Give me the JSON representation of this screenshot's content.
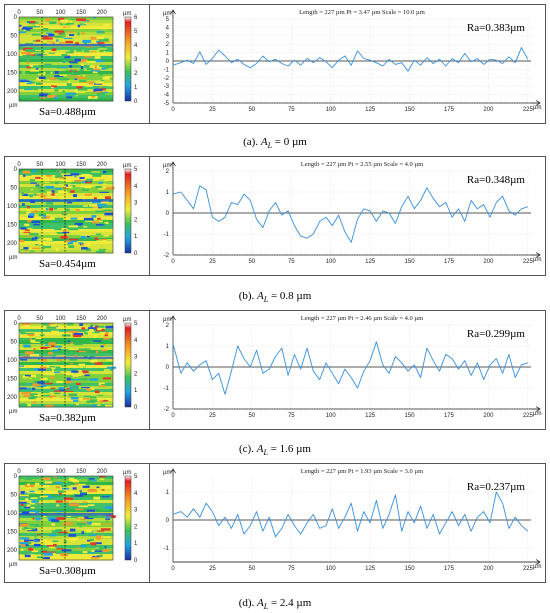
{
  "unit_label": "µm",
  "chart_data": [
    {
      "type": "line",
      "caption_prefix": "(a). ",
      "caption_var": "A",
      "caption_sub": "L",
      "caption_value": " = 0 µm",
      "header": "Length = 227 µm    Pt = 3.47 µm    Scale = 10.0 µm",
      "ra": "Ra=0.383µm",
      "sa": "Sa=0.488µm",
      "ylim": [
        -5,
        5
      ],
      "yticks": [
        5,
        4,
        3,
        2,
        1,
        0,
        -1,
        -2,
        -3,
        -4,
        -5
      ],
      "xlim": [
        0,
        227
      ],
      "xticks": [
        0,
        25,
        50,
        75,
        100,
        125,
        150,
        175,
        200,
        225
      ],
      "map_xticks": [
        0,
        50,
        100,
        150,
        200
      ],
      "map_yticks": [
        0,
        50,
        100,
        150,
        200
      ],
      "colorbar_ticks": [
        6,
        5,
        4,
        3,
        2,
        1,
        0
      ],
      "x": [
        0,
        5,
        9,
        13,
        17,
        21,
        25,
        29,
        33,
        37,
        41,
        45,
        49,
        53,
        57,
        61,
        65,
        69,
        73,
        77,
        81,
        85,
        89,
        93,
        97,
        101,
        105,
        109,
        113,
        117,
        121,
        125,
        129,
        133,
        137,
        141,
        145,
        149,
        153,
        157,
        161,
        165,
        169,
        173,
        177,
        181,
        185,
        189,
        193,
        197,
        201,
        205,
        209,
        213,
        217,
        221,
        225
      ],
      "y": [
        -0.5,
        -0.2,
        0.1,
        -0.3,
        1.1,
        -0.4,
        0.3,
        1.3,
        0.6,
        -0.2,
        0.2,
        -0.4,
        -0.8,
        -0.3,
        0.6,
        -0.1,
        0.2,
        -0.3,
        -0.6,
        0.1,
        -0.5,
        0.3,
        -0.2,
        0.4,
        -0.1,
        -0.8,
        0.1,
        0.6,
        -0.5,
        1.2,
        0.3,
        0.1,
        -0.2,
        -0.6,
        0.2,
        -0.4,
        -0.2,
        -1.2,
        0.1,
        -0.5,
        0.4,
        -0.3,
        0.2,
        -0.6,
        0.3,
        -0.2,
        0.9,
        -0.1,
        0.3,
        -0.4,
        0.2,
        0.1,
        -0.3,
        0.5,
        -0.2,
        1.6,
        0.2
      ]
    },
    {
      "type": "line",
      "caption_prefix": "(b). ",
      "caption_var": "A",
      "caption_sub": "L",
      "caption_value": " = 0.8 µm",
      "header": "Length = 227 µm    Pt = 2.55 µm    Scale = 4.0 µm",
      "ra": "Ra=0.348µm",
      "sa": "Sa=0.454µm",
      "ylim": [
        -2,
        2
      ],
      "yticks": [
        2,
        1,
        0,
        -1,
        -2
      ],
      "xlim": [
        0,
        227
      ],
      "xticks": [
        0,
        25,
        50,
        75,
        100,
        125,
        150,
        175,
        200,
        225
      ],
      "map_xticks": [
        0,
        50,
        100,
        150,
        200
      ],
      "map_yticks": [
        0,
        50,
        100,
        150,
        200
      ],
      "colorbar_ticks": [
        5,
        4,
        3,
        2,
        1,
        0
      ],
      "x": [
        0,
        5,
        9,
        13,
        17,
        21,
        25,
        29,
        33,
        37,
        41,
        45,
        49,
        53,
        57,
        61,
        65,
        69,
        73,
        77,
        81,
        85,
        89,
        93,
        97,
        101,
        105,
        109,
        113,
        117,
        121,
        125,
        129,
        133,
        137,
        141,
        145,
        149,
        153,
        157,
        161,
        165,
        169,
        173,
        177,
        181,
        185,
        189,
        193,
        197,
        201,
        205,
        209,
        213,
        217,
        221,
        225
      ],
      "y": [
        0.9,
        1.0,
        0.6,
        0.2,
        1.3,
        1.1,
        -0.2,
        -0.4,
        -0.2,
        0.5,
        0.4,
        0.9,
        0.6,
        -0.3,
        -0.7,
        0.1,
        0.5,
        -0.1,
        0.1,
        -0.6,
        -1.1,
        -1.2,
        -1.0,
        -0.4,
        -0.2,
        -0.6,
        -0.1,
        -0.9,
        -1.4,
        -0.3,
        0.2,
        0.1,
        -0.4,
        0.1,
        0.0,
        -0.5,
        0.3,
        0.8,
        0.2,
        0.6,
        1.2,
        0.7,
        0.3,
        0.5,
        -0.2,
        0.2,
        -0.4,
        0.6,
        0.2,
        0.4,
        -0.2,
        0.5,
        0.8,
        0.1,
        -0.1,
        0.2,
        0.3
      ]
    },
    {
      "type": "line",
      "caption_prefix": "(c). ",
      "caption_var": "A",
      "caption_sub": "L",
      "caption_value": " = 1.6 µm",
      "header": "Length = 227 µm    Pt = 2.46 µm    Scale = 4.0 µm",
      "ra": "Ra=0.299µm",
      "sa": "Sa=0.382µm",
      "ylim": [
        -2,
        2
      ],
      "yticks": [
        2,
        1,
        0,
        -1,
        -2
      ],
      "xlim": [
        0,
        227
      ],
      "xticks": [
        0,
        25,
        50,
        75,
        100,
        125,
        150,
        175,
        200,
        225
      ],
      "map_xticks": [
        0,
        50,
        100,
        150,
        200
      ],
      "map_yticks": [
        0,
        50,
        100,
        150,
        200
      ],
      "colorbar_ticks": [
        5,
        4,
        3,
        2,
        1,
        0
      ],
      "x": [
        0,
        5,
        9,
        13,
        17,
        21,
        25,
        29,
        33,
        37,
        41,
        45,
        49,
        53,
        57,
        61,
        65,
        69,
        73,
        77,
        81,
        85,
        89,
        93,
        97,
        101,
        105,
        109,
        113,
        117,
        121,
        125,
        129,
        133,
        137,
        141,
        145,
        149,
        153,
        157,
        161,
        165,
        169,
        173,
        177,
        181,
        185,
        189,
        193,
        197,
        201,
        205,
        209,
        213,
        217,
        221,
        225
      ],
      "y": [
        1.1,
        -0.3,
        0.2,
        -0.2,
        0.1,
        0.3,
        -0.6,
        -0.3,
        -1.3,
        -0.2,
        1.0,
        0.4,
        0.0,
        0.8,
        -0.3,
        -0.1,
        0.5,
        0.9,
        -0.4,
        0.6,
        -0.1,
        0.9,
        -0.2,
        -0.6,
        0.2,
        -0.3,
        -0.8,
        -0.1,
        -0.5,
        -1.0,
        -0.2,
        0.3,
        1.2,
        0.1,
        -0.3,
        0.5,
        0.2,
        -0.2,
        0.1,
        -0.5,
        0.9,
        0.3,
        -0.2,
        0.6,
        0.4,
        -0.1,
        0.3,
        -0.4,
        0.2,
        -0.6,
        0.1,
        0.4,
        -0.3,
        0.6,
        -0.5,
        0.1,
        0.2
      ]
    },
    {
      "type": "line",
      "caption_prefix": "(d). ",
      "caption_var": "A",
      "caption_sub": "L",
      "caption_value": " = 2.4 µm",
      "header": "Length = 227 µm    Pt = 1.93 µm    Scale = 3.0 µm",
      "ra": "Ra=0.237µm",
      "sa": "Sa=0.308µm",
      "ylim": [
        -1.5,
        1.5
      ],
      "yticks": [
        1,
        0,
        -1
      ],
      "xlim": [
        0,
        227
      ],
      "xticks": [
        0,
        25,
        50,
        75,
        100,
        125,
        150,
        175,
        200,
        225
      ],
      "map_xticks": [
        0,
        50,
        100,
        150,
        200
      ],
      "map_yticks": [
        0,
        50,
        100,
        150,
        200
      ],
      "colorbar_ticks": [
        5,
        4,
        3,
        2,
        1,
        0
      ],
      "x": [
        0,
        5,
        9,
        13,
        17,
        21,
        25,
        29,
        33,
        37,
        41,
        45,
        49,
        53,
        57,
        61,
        65,
        69,
        73,
        77,
        81,
        85,
        89,
        93,
        97,
        101,
        105,
        109,
        113,
        117,
        121,
        125,
        129,
        133,
        137,
        141,
        145,
        149,
        153,
        157,
        161,
        165,
        169,
        173,
        177,
        181,
        185,
        189,
        193,
        197,
        201,
        205,
        209,
        213,
        217,
        221,
        225
      ],
      "y": [
        0.2,
        0.3,
        0.1,
        0.4,
        0.1,
        0.6,
        0.3,
        -0.2,
        0.1,
        -0.3,
        0.2,
        -0.5,
        -0.2,
        0.3,
        -0.4,
        0.1,
        -0.6,
        -0.3,
        0.2,
        -0.2,
        -0.5,
        -0.1,
        0.2,
        -0.3,
        -0.2,
        0.4,
        -0.3,
        0.1,
        0.6,
        -0.4,
        0.3,
        -0.1,
        0.7,
        -0.3,
        0.2,
        0.9,
        -0.4,
        0.3,
        -0.1,
        0.5,
        -0.3,
        0.2,
        -0.5,
        -0.1,
        0.3,
        -0.2,
        0.2,
        -0.4,
        0.1,
        0.3,
        -0.1,
        1.0,
        0.6,
        -0.3,
        0.1,
        -0.2,
        -0.4
      ]
    }
  ]
}
